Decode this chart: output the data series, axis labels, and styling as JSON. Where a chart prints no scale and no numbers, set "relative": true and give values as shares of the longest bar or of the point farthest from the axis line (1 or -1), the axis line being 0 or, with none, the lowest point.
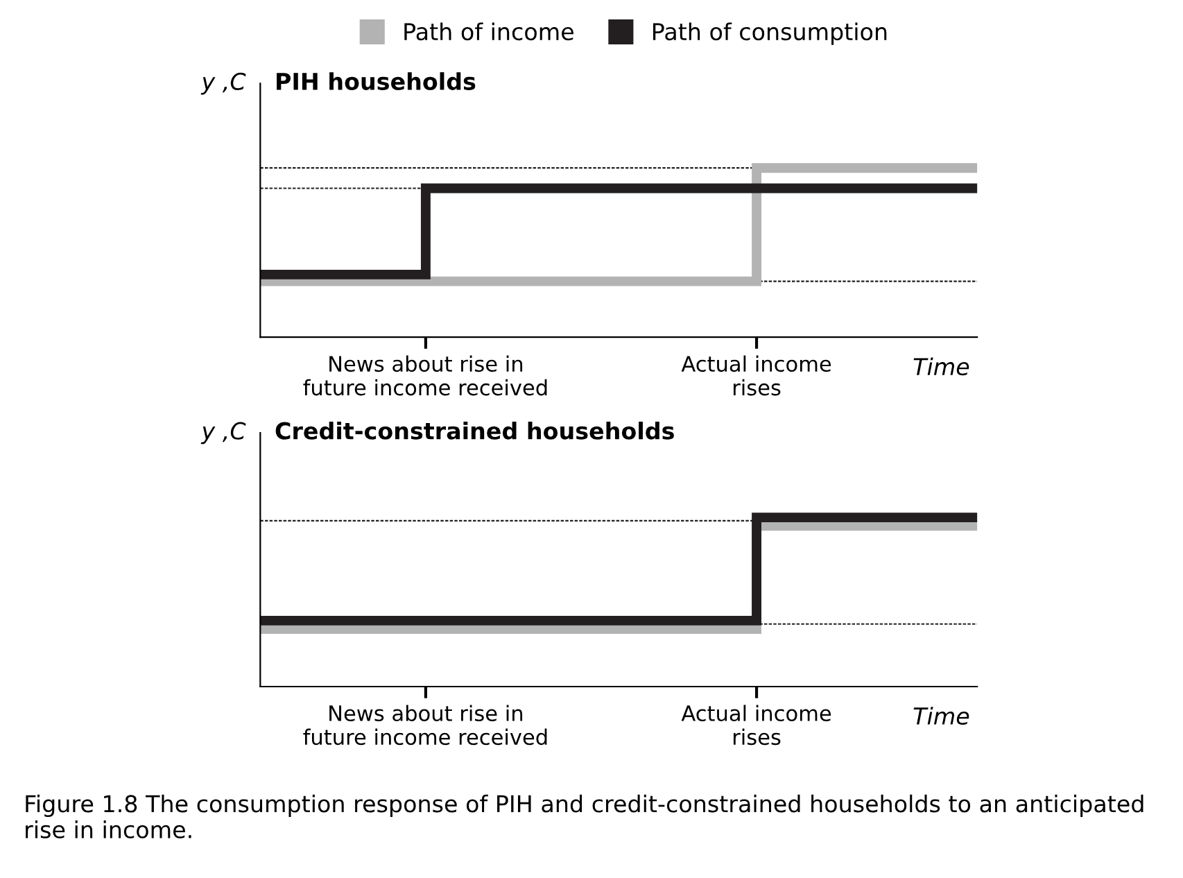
{
  "chart_data": [
    {
      "type": "step",
      "title": "PIH households",
      "ylabel": "y ,C",
      "xlabel": "Time",
      "relative": true,
      "legend": "top",
      "categories": [
        null,
        null,
        null,
        "News about rise in\nfuture income received",
        null,
        null,
        null,
        null,
        null,
        "Actual income\nrises",
        null,
        null,
        null,
        null
      ],
      "series": [
        {
          "name": "Path of income",
          "color": "#b3b3b3",
          "values": [
            0.33,
            0.33,
            0.33,
            0.33,
            0.33,
            0.33,
            0.33,
            0.33,
            0.33,
            1,
            1,
            1,
            1,
            1
          ]
        },
        {
          "name": "Path of consumption",
          "color": "#231f20",
          "values": [
            0.37,
            0.37,
            0.37,
            0.88,
            0.88,
            0.88,
            0.88,
            0.88,
            0.88,
            0.88,
            0.88,
            0.88,
            0.88,
            0.88
          ]
        }
      ],
      "ref_lines": [
        {
          "axis": "y",
          "value": 1,
          "color": "#231f20",
          "line_style": "dashed"
        },
        {
          "axis": "y",
          "value": 0.88,
          "color": "#231f20",
          "line_style": "dashed"
        },
        {
          "axis": "y",
          "value": 0.33,
          "color": "#231f20",
          "line_style": "dashed"
        }
      ]
    },
    {
      "type": "step",
      "title": "Credit-constrained households",
      "ylabel": "y ,C",
      "xlabel": "Time",
      "relative": true,
      "categories": [
        null,
        null,
        null,
        "News about rise in\nfuture income received",
        null,
        null,
        null,
        null,
        null,
        "Actual income\nrises",
        null,
        null,
        null,
        null
      ],
      "series": [
        {
          "color": "#b3b3b3",
          "values": [
            0.34,
            0.34,
            0.34,
            0.34,
            0.34,
            0.34,
            0.34,
            0.34,
            0.34,
            0.95,
            0.95,
            0.95,
            0.95,
            0.95
          ]
        },
        {
          "color": "#231f20",
          "values": [
            0.39,
            0.39,
            0.39,
            0.39,
            0.39,
            0.39,
            0.39,
            0.39,
            0.39,
            1,
            1,
            1,
            1,
            1
          ]
        }
      ],
      "ref_lines": [
        {
          "axis": "y",
          "value": 0.98,
          "color": "#231f20",
          "line_style": "dashed"
        },
        {
          "axis": "y",
          "value": 0.37,
          "color": "#231f20",
          "line_style": "dashed"
        }
      ],
      "annotations": [
        "Figure 1.8 The consumption response of PIH and credit-constrained households to an anticipated rise in income."
      ]
    }
  ]
}
